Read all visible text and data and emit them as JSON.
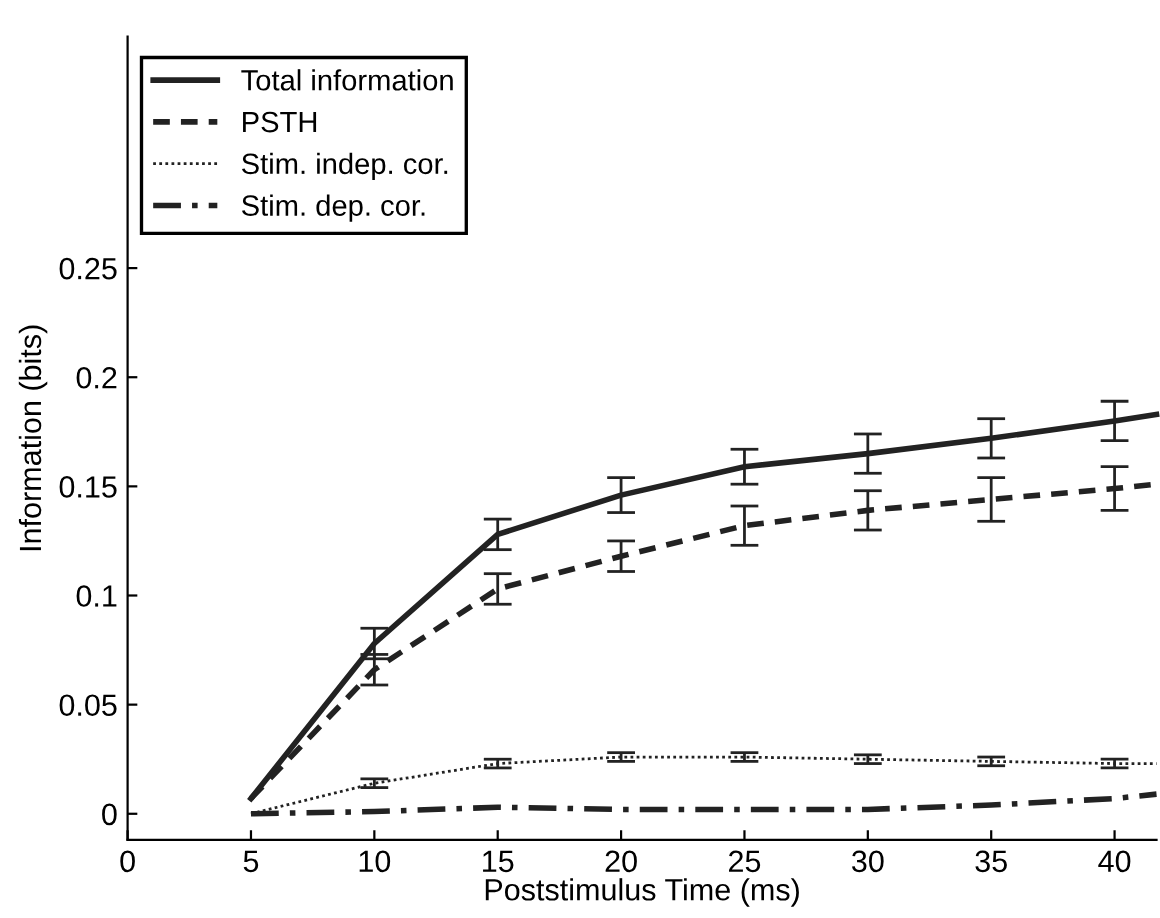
{
  "chart_data": {
    "type": "line",
    "xlabel": "Poststimulus Time (ms)",
    "ylabel": "Information (bits)",
    "x": [
      5,
      10,
      15,
      20,
      25,
      30,
      35,
      40,
      41.7
    ],
    "series": [
      {
        "name": "Total information",
        "color": "#222222",
        "line_style": "solid",
        "values": [
          0.007,
          0.078,
          0.128,
          0.146,
          0.159,
          0.165,
          0.172,
          0.18,
          0.183
        ],
        "errors": [
          null,
          0.007,
          0.007,
          0.008,
          0.008,
          0.009,
          0.009,
          0.009,
          null
        ]
      },
      {
        "name": "PSTH",
        "color": "#222222",
        "line_style": "dashed",
        "values": [
          0.007,
          0.066,
          0.103,
          0.118,
          0.132,
          0.139,
          0.144,
          0.149,
          0.151
        ],
        "errors": [
          null,
          0.007,
          0.007,
          0.007,
          0.009,
          0.009,
          0.01,
          0.01,
          null
        ]
      },
      {
        "name": "Stim. indep. cor.",
        "color": "#222222",
        "line_style": "dotted",
        "values": [
          0.0,
          0.014,
          0.023,
          0.026,
          0.026,
          0.025,
          0.024,
          0.023,
          0.023
        ],
        "errors": [
          null,
          0.002,
          0.002,
          0.002,
          0.002,
          0.002,
          0.002,
          0.002,
          null
        ]
      },
      {
        "name": "Stim. dep. cor.",
        "color": "#222222",
        "line_style": "dashdot",
        "values": [
          0.0,
          0.001,
          0.003,
          0.002,
          0.002,
          0.002,
          0.004,
          0.007,
          0.009
        ]
      }
    ],
    "xlim": [
      0,
      41.7
    ],
    "ylim": [
      -0.012,
      0.356
    ],
    "xticks": [
      0,
      5,
      10,
      15,
      20,
      25,
      30,
      35,
      40
    ],
    "yticks": [
      0,
      0.05,
      0.1,
      0.15,
      0.2,
      0.25
    ],
    "legend": "top left",
    "grid": false,
    "marker": "none"
  }
}
